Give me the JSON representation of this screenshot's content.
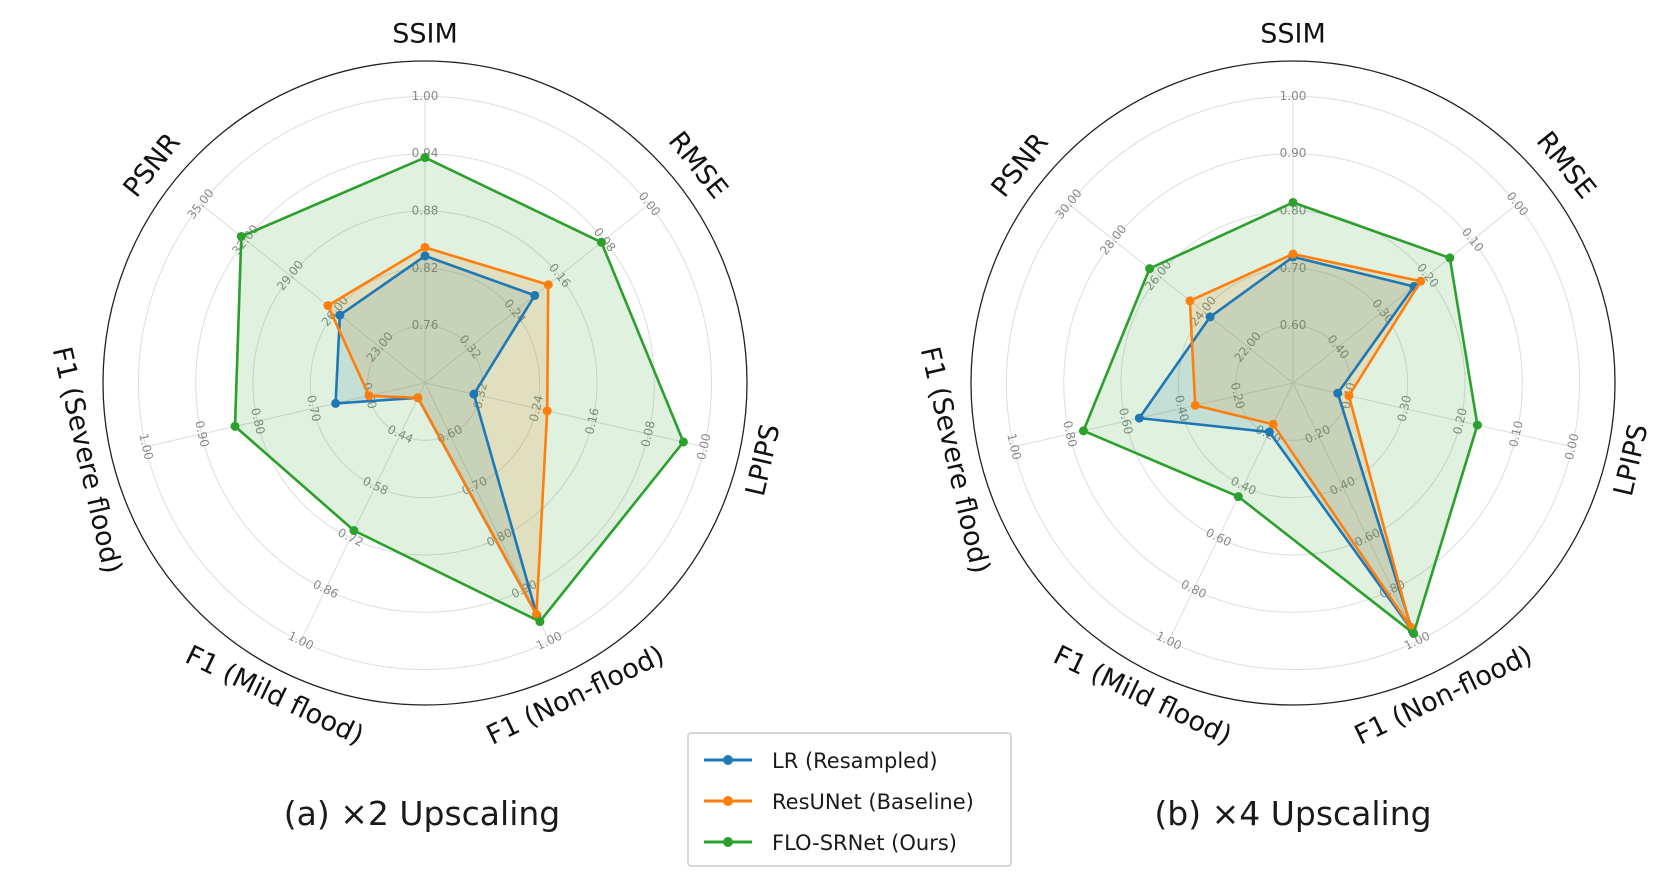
{
  "chart_data": [
    {
      "type": "radar",
      "title": "(a) ×2 Upscaling",
      "axes": [
        {
          "label": "SSIM",
          "range": [
            0.7,
            1.0
          ],
          "ticks": [
            "0.76",
            "0.82",
            "0.88",
            "0.94",
            "1.00"
          ],
          "inverted": false
        },
        {
          "label": "RMSE",
          "range": [
            0.4,
            0.0
          ],
          "ticks": [
            "0.32",
            "0.24",
            "0.16",
            "0.08",
            "0.00"
          ],
          "inverted": true
        },
        {
          "label": "LPIPS",
          "range": [
            0.4,
            0.0
          ],
          "ticks": [
            "0.32",
            "0.24",
            "0.16",
            "0.08",
            "0.00"
          ],
          "inverted": true
        },
        {
          "label": "F1 (Non-flood)",
          "range": [
            0.5,
            1.0
          ],
          "ticks": [
            "0.60",
            "0.70",
            "0.80",
            "0.90",
            "1.00"
          ],
          "inverted": false
        },
        {
          "label": "F1 (Mild flood)",
          "range": [
            0.3,
            1.0
          ],
          "ticks": [
            "0.44",
            "0.58",
            "0.72",
            "0.86",
            "1.00"
          ],
          "inverted": false
        },
        {
          "label": "F1 (Severe flood)",
          "range": [
            0.5,
            1.0
          ],
          "ticks": [
            "0.60",
            "0.70",
            "0.80",
            "0.90",
            "1.00"
          ],
          "inverted": false
        },
        {
          "label": "PSNR",
          "range": [
            20.0,
            35.0
          ],
          "ticks": [
            "23.00",
            "26.00",
            "29.00",
            "32.00",
            "35.00"
          ],
          "inverted": false
        }
      ],
      "series": [
        {
          "name": "LR (Resampled)",
          "color": "#1f77b4",
          "values": [
            0.833,
            0.204,
            0.33,
            0.95,
            0.34,
            0.66,
            25.7
          ]
        },
        {
          "name": "ResUNet (Baseline)",
          "color": "#ff7f0e",
          "values": [
            0.842,
            0.18,
            0.225,
            0.948,
            0.34,
            0.6,
            26.5
          ]
        },
        {
          "name": "FLO-SRNet (Ours)",
          "color": "#2ca02c",
          "values": [
            0.936,
            0.085,
            0.03,
            0.962,
            0.7,
            0.84,
            32.3
          ]
        }
      ]
    },
    {
      "type": "radar",
      "title": "(b) ×4 Upscaling",
      "axes": [
        {
          "label": "SSIM",
          "range": [
            0.5,
            1.0
          ],
          "ticks": [
            "0.60",
            "0.70",
            "0.80",
            "0.90",
            "1.00"
          ],
          "inverted": false
        },
        {
          "label": "RMSE",
          "range": [
            0.5,
            0.0
          ],
          "ticks": [
            "0.40",
            "0.30",
            "0.20",
            "0.10",
            "0.00"
          ],
          "inverted": true
        },
        {
          "label": "LPIPS",
          "range": [
            0.5,
            0.0
          ],
          "ticks": [
            "0.40",
            "0.30",
            "0.20",
            "0.10",
            "0.00"
          ],
          "inverted": true
        },
        {
          "label": "F1 (Non-flood)",
          "range": [
            0.0,
            1.0
          ],
          "ticks": [
            "0.20",
            "0.40",
            "0.60",
            "0.80",
            "1.00"
          ],
          "inverted": false
        },
        {
          "label": "F1 (Mild flood)",
          "range": [
            0.0,
            1.0
          ],
          "ticks": [
            "0.20",
            "0.40",
            "0.60",
            "0.80",
            "1.00"
          ],
          "inverted": false
        },
        {
          "label": "F1 (Severe flood)",
          "range": [
            0.0,
            1.0
          ],
          "ticks": [
            "0.20",
            "0.40",
            "0.60",
            "0.80",
            "1.00"
          ],
          "inverted": false
        },
        {
          "label": "PSNR",
          "range": [
            20.0,
            30.0
          ],
          "ticks": [
            "22.00",
            "24.00",
            "26.00",
            "28.00",
            "30.00"
          ],
          "inverted": false
        }
      ],
      "series": [
        {
          "name": "LR (Resampled)",
          "color": "#1f77b4",
          "values": [
            0.72,
            0.23,
            0.42,
            0.96,
            0.19,
            0.55,
            23.7
          ]
        },
        {
          "name": "ResUNet (Baseline)",
          "color": "#ff7f0e",
          "values": [
            0.725,
            0.215,
            0.4,
            0.945,
            0.16,
            0.35,
            24.6
          ]
        },
        {
          "name": "FLO-SRNet (Ours)",
          "color": "#2ca02c",
          "values": [
            0.815,
            0.15,
            0.17,
            0.97,
            0.44,
            0.75,
            26.4
          ]
        }
      ]
    }
  ],
  "legend": {
    "entries": [
      "LR (Resampled)",
      "ResUNet (Baseline)",
      "FLO-SRNet (Ours)"
    ],
    "colors": [
      "#1f77b4",
      "#ff7f0e",
      "#2ca02c"
    ]
  }
}
